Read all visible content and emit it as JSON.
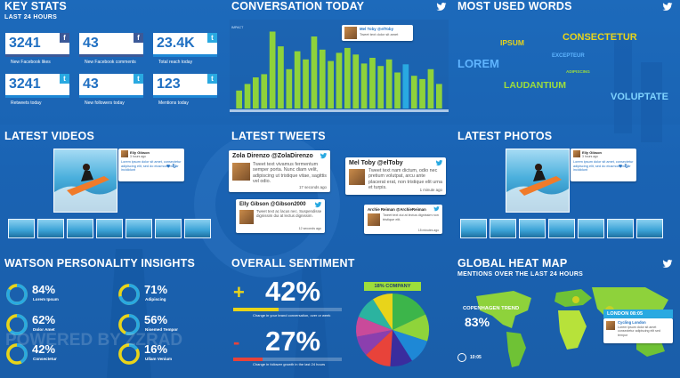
{
  "colors": {
    "twitter": "#29a9e1",
    "facebook": "#3b5998",
    "accent_yellow": "#e8d41a",
    "green": "#9ede3b",
    "red": "#e8433a"
  },
  "key_stats": {
    "title": "KEY STATS",
    "subtitle": "LAST 24 HOURS",
    "tiles": [
      {
        "value": "3241",
        "label": "New Facebook likes",
        "icon": "facebook-icon"
      },
      {
        "value": "43",
        "label": "New Facebook comments",
        "icon": "facebook-icon"
      },
      {
        "value": "23.4K",
        "label": "Total reach today",
        "icon": "twitter-icon"
      },
      {
        "value": "3241",
        "label": "Retweets today",
        "icon": "twitter-icon"
      },
      {
        "value": "43",
        "label": "New followers today",
        "icon": "twitter-icon"
      },
      {
        "value": "123",
        "label": "Mentions today",
        "icon": "twitter-icon"
      }
    ]
  },
  "conversation": {
    "title": "CONVERSATION TODAY",
    "bubble": {
      "name": "Mel Toby @elToby",
      "text": "Tweet text dolor sit amet"
    }
  },
  "chart_data": {
    "type": "bar",
    "title": "CONVERSATION TODAY",
    "ylabel": "",
    "ylim": [
      0,
      100
    ],
    "highlight_index": 20,
    "values": [
      22,
      30,
      38,
      42,
      94,
      76,
      48,
      70,
      60,
      88,
      72,
      58,
      68,
      74,
      66,
      55,
      62,
      52,
      60,
      44,
      54,
      40,
      36,
      48,
      30
    ]
  },
  "most_used_words": {
    "title": "MOST USED WORDS",
    "words": [
      {
        "text": "CONSECTETUR",
        "color": "#e8d41a"
      },
      {
        "text": "IPSUM",
        "color": "#e8d41a"
      },
      {
        "text": "EXCEPTEUR",
        "color": "#5fb4ff"
      },
      {
        "text": "LOREM",
        "color": "#5fb4ff"
      },
      {
        "text": "ADIPISCING",
        "color": "#9ede3b"
      },
      {
        "text": "LAUDANTIUM",
        "color": "#9ede3b"
      },
      {
        "text": "VOLUPTATE",
        "color": "#7fd3ff"
      }
    ]
  },
  "latest_videos": {
    "title": "LATEST VIDEOS",
    "card": {
      "name": "Elly Gibson",
      "ago": "3 hours ago",
      "text": "Lorem ipsum dolor sit amet, consectetur adipiscing elit, sed do eiusmod tempor incididunt"
    }
  },
  "latest_tweets": {
    "title": "LATEST TWEETS",
    "tweets": [
      {
        "name": "Zola Direnzo @ZolaDirenzo",
        "text": "Tweet text vivamus fermentum semper porta. Nunc diam velit, adipiscing ut tristique vitae, sagittis vel odio.",
        "ago": "17 seconds ago"
      },
      {
        "name": "Mel Toby @elToby",
        "text": "Tweet text nam dictum, odio nec pretium volutpat, arcu ante placerat erat, non tristique elit urna et turpis.",
        "ago": "1 minute ago"
      },
      {
        "name": "Elly Gibson @Gibson2000",
        "text": "Tweet text ac lacus nec. Suspendisse dignissim dui at lectus dignissim.",
        "ago": "12 seconds ago"
      },
      {
        "name": "Archie Reiman @ArchieReiman",
        "text": "Tweet text dui at lectus dignissim non tristique elit.",
        "ago": "15 minutes ago"
      }
    ]
  },
  "latest_photos": {
    "title": "LATEST PHOTOS",
    "card": {
      "name": "Elly Gibson",
      "ago": "3 hours ago",
      "text": "Lorem ipsum dolor sit amet, consectetur adipiscing elit, sed do eiusmod tempor incididunt"
    }
  },
  "watson": {
    "title": "WATSON PERSONALITY INSIGHTS",
    "items": [
      {
        "pct": "84%",
        "value": 84,
        "label": "Lorem Ipsum"
      },
      {
        "pct": "71%",
        "value": 71,
        "label": "Adipiscing"
      },
      {
        "pct": "62%",
        "value": 62,
        "label": "Dolor Amet"
      },
      {
        "pct": "56%",
        "value": 56,
        "label": "Nisemed Tempor"
      },
      {
        "pct": "42%",
        "value": 42,
        "label": "Consectetur"
      },
      {
        "pct": "16%",
        "value": 16,
        "label": "Ullam Venium"
      }
    ],
    "watermark": "POWERED BY ZZRAD"
  },
  "sentiment": {
    "title": "OVERALL SENTIMENT",
    "positive": {
      "sign": "+",
      "value": "42%",
      "bar": 0.42,
      "note": "Change in your brand conversation, over or week"
    },
    "negative": {
      "sign": "-",
      "value": "27%",
      "bar": 0.27,
      "note": "Change in follower growth in the last 24 hours"
    },
    "pie_label": "18% COMPANY",
    "pie": [
      {
        "value": 18,
        "color": "#3cb54a"
      },
      {
        "value": 12,
        "color": "#8fd43a"
      },
      {
        "value": 11,
        "color": "#1e88d6"
      },
      {
        "value": 10,
        "color": "#3a2d9e"
      },
      {
        "value": 12,
        "color": "#e8433a"
      },
      {
        "value": 9,
        "color": "#8b3fae"
      },
      {
        "value": 9,
        "color": "#c94a9a"
      },
      {
        "value": 10,
        "color": "#2bb3a0"
      },
      {
        "value": 9,
        "color": "#e8d41a"
      }
    ]
  },
  "heatmap": {
    "title": "GLOBAL HEAT MAP",
    "subtitle": "MENTIONS OVER THE LAST 24 HOURS",
    "trend_label": "COPENHAGEN TREND",
    "trend_value": "83%",
    "time": "10:05",
    "popup": {
      "header": "LONDON 08:05",
      "name": "Cycling London",
      "text": "Lorem ipsum dolor sit amet consectetur adipiscing elit sed tempor"
    }
  }
}
